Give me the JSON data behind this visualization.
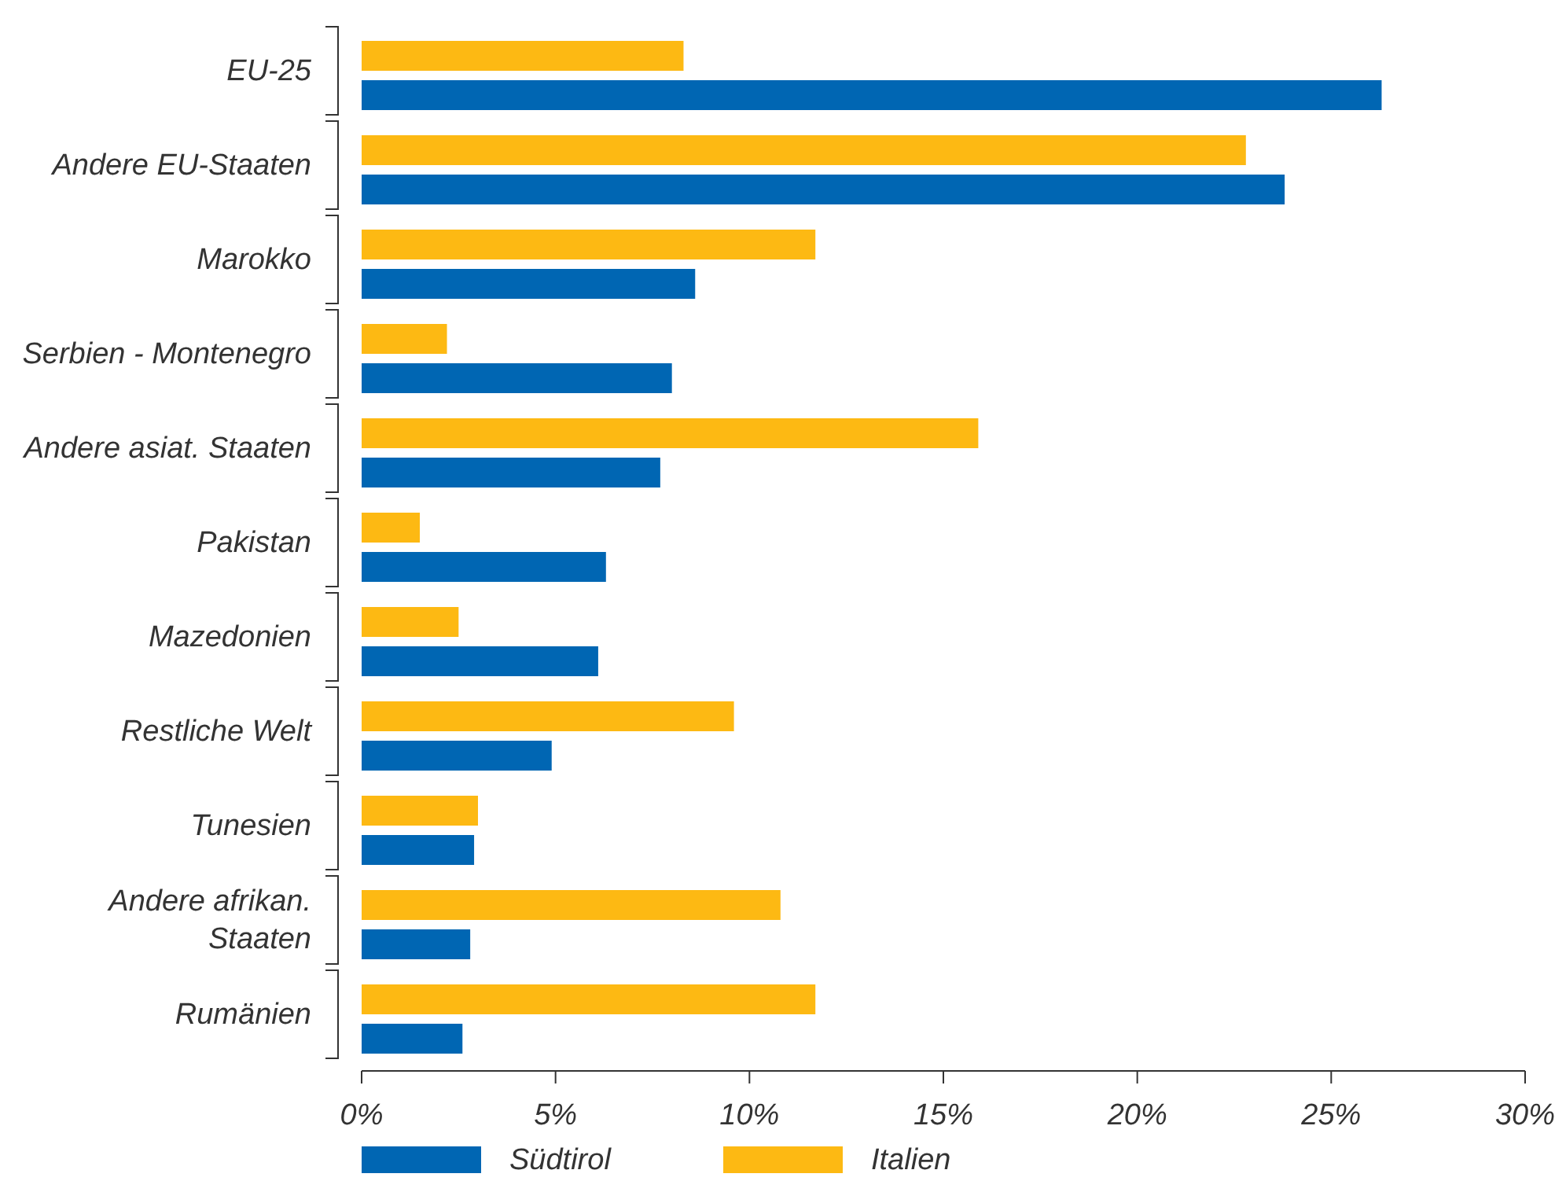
{
  "chart_data": {
    "type": "bar",
    "orientation": "horizontal",
    "categories": [
      "EU-25",
      "Andere EU-Staaten",
      "Marokko",
      "Serbien - Montenegro",
      "Andere asiat. Staaten",
      "Pakistan",
      "Mazedonien",
      "Restliche Welt",
      "Tunesien",
      "Andere afrikan. Staaten",
      "Rumänien"
    ],
    "series": [
      {
        "name": "Südtirol",
        "color": "#0066b3",
        "values": [
          26.3,
          23.8,
          8.6,
          8.0,
          7.7,
          6.3,
          6.1,
          4.9,
          2.9,
          2.8,
          2.6
        ]
      },
      {
        "name": "Italien",
        "color": "#fdb913",
        "values": [
          8.3,
          22.8,
          11.7,
          2.2,
          15.9,
          1.5,
          2.5,
          9.6,
          3.0,
          10.8,
          11.7
        ]
      }
    ],
    "xlim": [
      0,
      30
    ],
    "xticks": [
      {
        "value": 0,
        "label": "0%"
      },
      {
        "value": 5,
        "label": "5%"
      },
      {
        "value": 10,
        "label": "10%"
      },
      {
        "value": 15,
        "label": "15%"
      },
      {
        "value": 20,
        "label": "20%"
      },
      {
        "value": 25,
        "label": "25%"
      },
      {
        "value": 30,
        "label": "30%"
      }
    ],
    "grid": false,
    "legend": "bottom left"
  }
}
